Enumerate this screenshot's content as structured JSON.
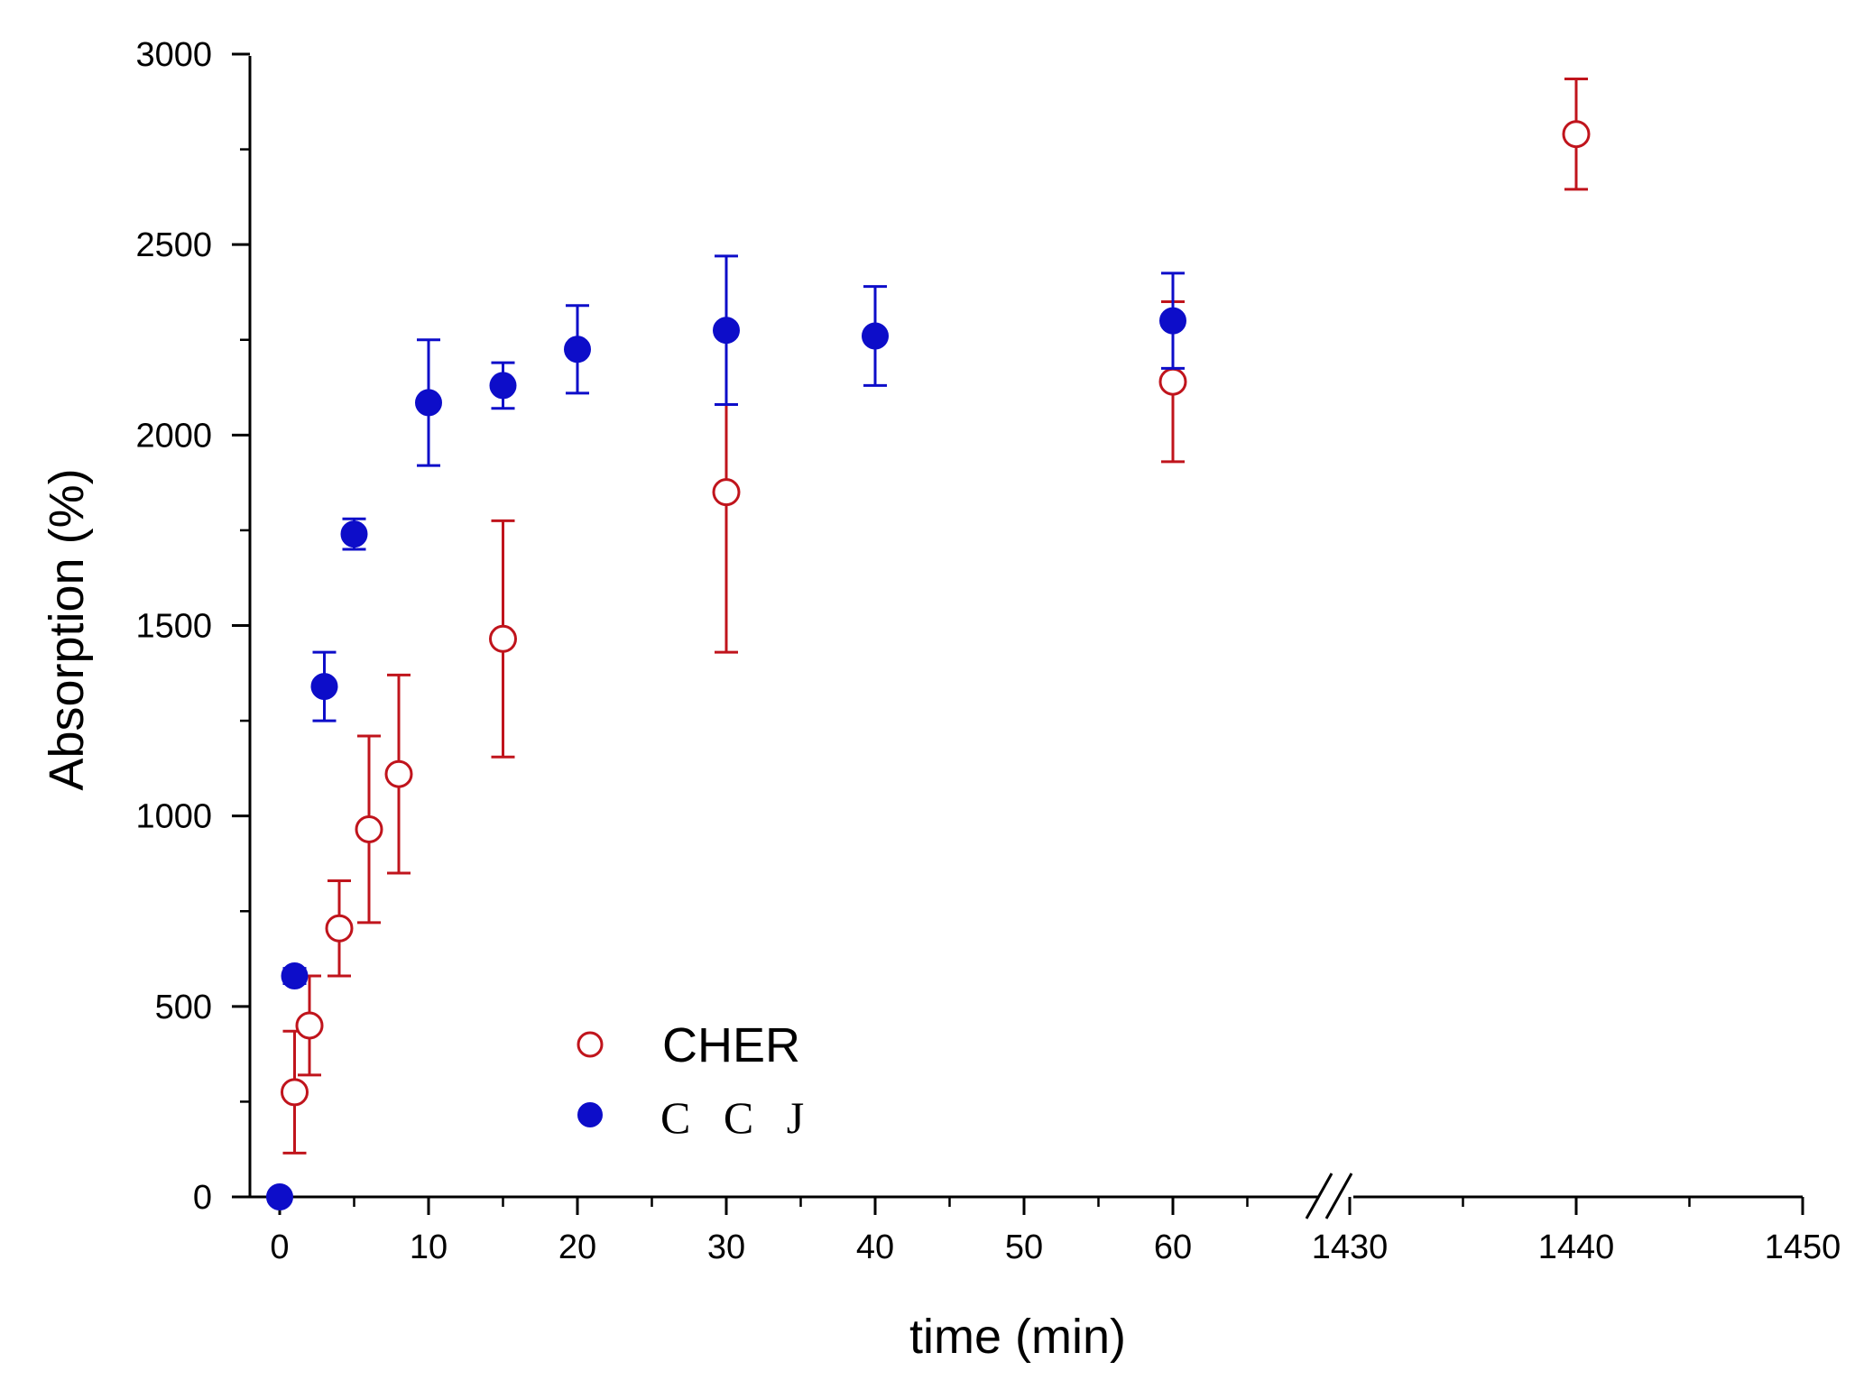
{
  "chart_data": {
    "type": "scatter",
    "title": "",
    "xlabel": "time (min)",
    "ylabel": "Absorption (%)",
    "ylim": [
      0,
      3000
    ],
    "y_ticks": [
      "0",
      "500",
      "1000",
      "1500",
      "2000",
      "2500",
      "3000"
    ],
    "x_segments": [
      {
        "range": [
          0,
          70
        ],
        "ticks": [
          0,
          10,
          20,
          30,
          40,
          50,
          60
        ]
      },
      {
        "range": [
          1430,
          1450
        ],
        "ticks": [
          1430,
          1440,
          1450
        ]
      }
    ],
    "x_tick_labels": [
      "0",
      "10",
      "20",
      "30",
      "40",
      "50",
      "60",
      "1430",
      "1440",
      "1450"
    ],
    "axis_break": "between 60 and 1430",
    "legend_position": "lower-left-center",
    "series": [
      {
        "name": "CHER",
        "marker": "open-circle",
        "color": "#c0141c",
        "points": [
          {
            "x": 1,
            "y": 275,
            "err": 160
          },
          {
            "x": 2,
            "y": 450,
            "err": 130
          },
          {
            "x": 4,
            "y": 705,
            "err": 125
          },
          {
            "x": 6,
            "y": 965,
            "err": 245
          },
          {
            "x": 8,
            "y": 1110,
            "err": 260
          },
          {
            "x": 15,
            "y": 1465,
            "err": 310
          },
          {
            "x": 30,
            "y": 1850,
            "err": 420
          },
          {
            "x": 60,
            "y": 2140,
            "err": 210
          },
          {
            "x": 1440,
            "y": 2790,
            "err": 145
          }
        ]
      },
      {
        "name": "C C J",
        "marker": "filled-circle",
        "color": "#0d0dc9",
        "points": [
          {
            "x": 0,
            "y": 0,
            "err": 0
          },
          {
            "x": 1,
            "y": 580,
            "err": 20
          },
          {
            "x": 3,
            "y": 1340,
            "err": 90
          },
          {
            "x": 5,
            "y": 1740,
            "err": 40
          },
          {
            "x": 10,
            "y": 2085,
            "err": 165
          },
          {
            "x": 15,
            "y": 2130,
            "err": 60
          },
          {
            "x": 20,
            "y": 2225,
            "err": 115
          },
          {
            "x": 30,
            "y": 2275,
            "err": 195
          },
          {
            "x": 40,
            "y": 2260,
            "err": 130
          },
          {
            "x": 60,
            "y": 2300,
            "err": 125
          }
        ]
      }
    ]
  }
}
